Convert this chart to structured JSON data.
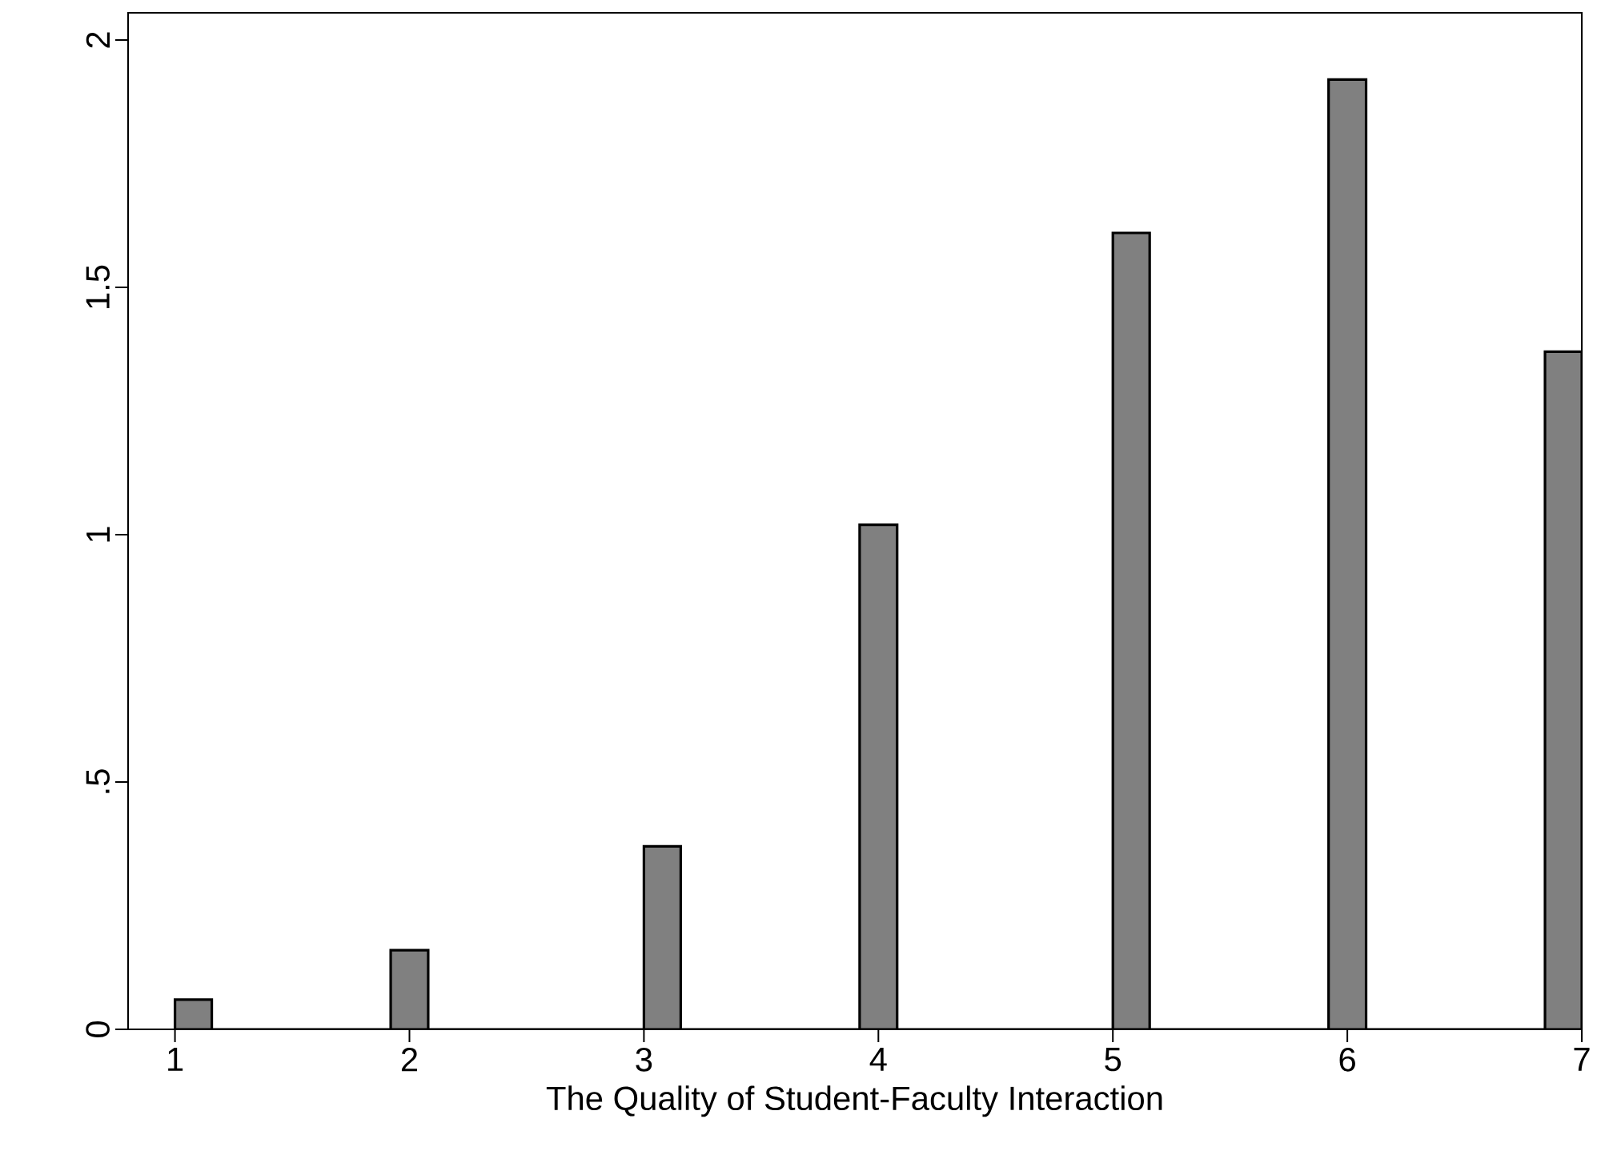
{
  "chart_data": {
    "type": "histogram",
    "xlabel": "The Quality of Student-Faculty Interaction",
    "bins": [
      1,
      1.157,
      1.92,
      2.08,
      3.0,
      3.157,
      3.92,
      4.08,
      5.0,
      5.157,
      5.92,
      6.08,
      6.843,
      7
    ],
    "values": [
      0.06,
      0,
      0.16,
      0,
      0.37,
      0,
      1.02,
      0,
      1.61,
      0,
      1.92,
      0,
      1.37
    ],
    "color": "#808080",
    "xlim": [
      0.8,
      7
    ],
    "xticks": [
      1,
      2,
      3,
      4,
      5,
      6,
      7
    ],
    "ylim": [
      0,
      2.055
    ],
    "yticks": [
      0,
      {
        "value": 0.5,
        "label": ".5"
      },
      1,
      1.5,
      2
    ]
  }
}
